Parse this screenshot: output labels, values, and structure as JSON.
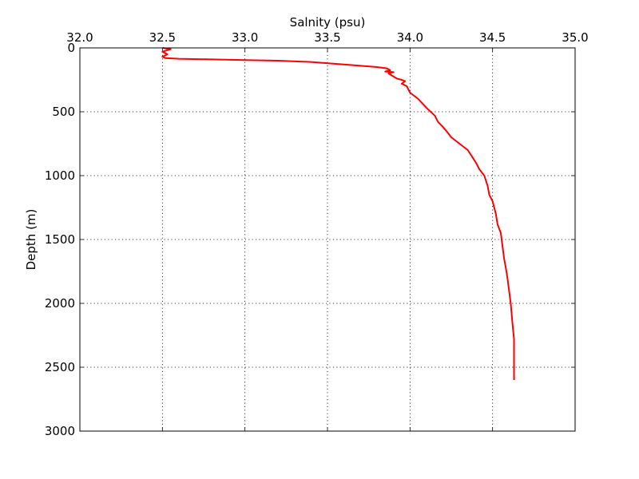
{
  "chart_data": {
    "type": "line",
    "xlabel": "Salnity (psu)",
    "ylabel": "Depth (m)",
    "xlim": [
      32.0,
      35.0
    ],
    "ylim": [
      0,
      3000
    ],
    "y_inverted": true,
    "x_axis_position": "top",
    "grid": true,
    "line_color": "#ff0000",
    "xticks": [
      "32.0",
      "32.5",
      "33.0",
      "33.5",
      "34.0",
      "34.5",
      "35.0"
    ],
    "yticks": [
      "0",
      "500",
      "1000",
      "1500",
      "2000",
      "2500",
      "3000"
    ],
    "series": [
      {
        "x": [
          32.5,
          32.55,
          32.5,
          32.53,
          32.5,
          32.52,
          32.6,
          32.8,
          33.0,
          33.2,
          33.4,
          33.6,
          33.8,
          33.86,
          33.88,
          33.85,
          33.9,
          33.87,
          33.92,
          33.95,
          33.97,
          33.95,
          33.98,
          34.0,
          34.05,
          34.1,
          34.15,
          34.17,
          34.2,
          34.22,
          34.25,
          34.3,
          34.35,
          34.38,
          34.4,
          34.42,
          34.45,
          34.47,
          34.48,
          34.5,
          34.52,
          34.53,
          34.55,
          34.56,
          34.57,
          34.58,
          34.59,
          34.6,
          34.61,
          34.62,
          34.63,
          34.63,
          34.63,
          34.63
        ],
        "y": [
          0,
          10,
          30,
          50,
          70,
          80,
          85,
          90,
          95,
          100,
          110,
          130,
          150,
          160,
          175,
          185,
          190,
          200,
          240,
          250,
          260,
          280,
          300,
          350,
          400,
          470,
          530,
          580,
          620,
          650,
          700,
          750,
          800,
          860,
          900,
          950,
          1000,
          1080,
          1150,
          1200,
          1300,
          1380,
          1450,
          1550,
          1650,
          1720,
          1800,
          1900,
          2000,
          2150,
          2280,
          2350,
          2450,
          2600
        ]
      }
    ]
  }
}
